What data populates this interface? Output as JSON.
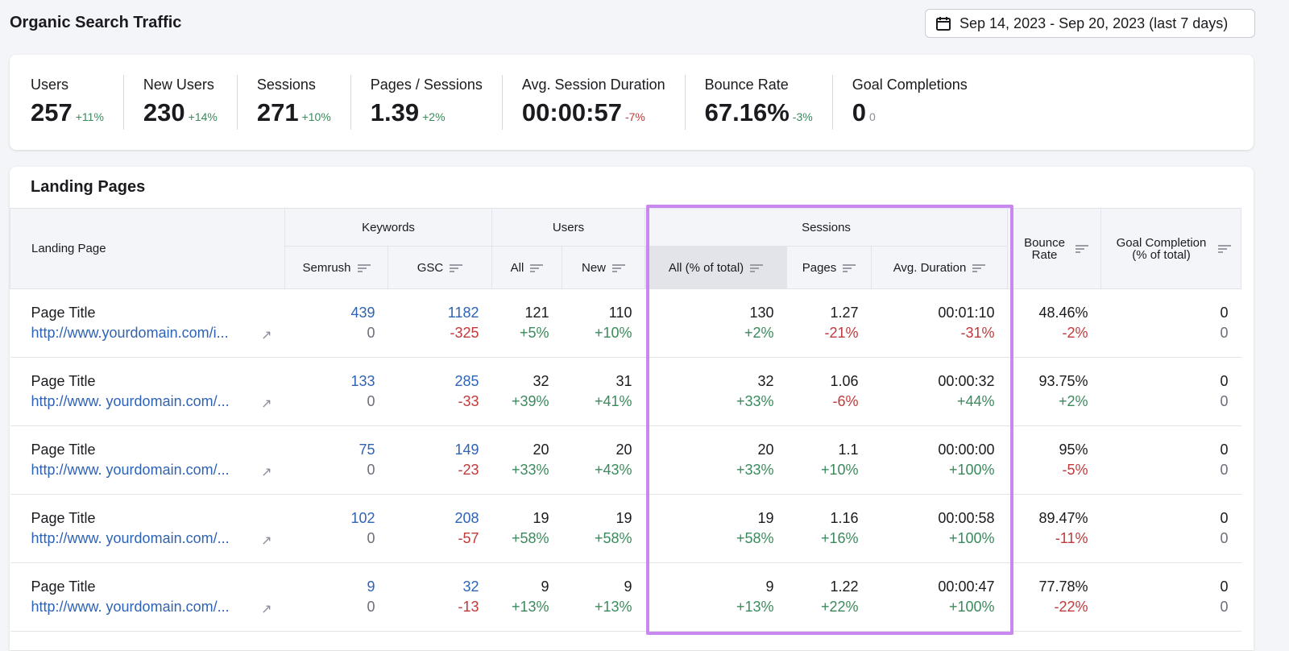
{
  "title": "Organic Search Traffic",
  "date_range": "Sep 14, 2023 - Sep 20, 2023 (last 7 days)",
  "kpis": [
    {
      "label": "Users",
      "value": "257",
      "delta": "+11%",
      "trend": "up"
    },
    {
      "label": "New Users",
      "value": "230",
      "delta": "+14%",
      "trend": "up"
    },
    {
      "label": "Sessions",
      "value": "271",
      "delta": "+10%",
      "trend": "up"
    },
    {
      "label": "Pages / Sessions",
      "value": "1.39",
      "delta": "+2%",
      "trend": "up"
    },
    {
      "label": "Avg. Session Duration",
      "value": "00:00:57",
      "delta": "-7%",
      "trend": "down"
    },
    {
      "label": "Bounce Rate",
      "value": "67.16%",
      "delta": "-3%",
      "trend": "up"
    },
    {
      "label": "Goal Completions",
      "value": "0",
      "delta": "0",
      "trend": "neutral"
    }
  ],
  "landing": {
    "title": "Landing Pages",
    "groups": {
      "landing": "Landing Page",
      "keywords": "Keywords",
      "users": "Users",
      "sessions": "Sessions",
      "bounce": "Bounce Rate",
      "goal": "Goal Completion (% of total)"
    },
    "cols": {
      "semrush": "Semrush",
      "gsc": "GSC",
      "all": "All",
      "new": "New",
      "sess_all": "All (% of total)",
      "pages": "Pages",
      "avg": "Avg. Duration"
    },
    "rows": [
      {
        "title": "Page Title",
        "url": "http://www.yourdomain.com/i...",
        "semrush": [
          "439",
          "0"
        ],
        "gsc": [
          "1182",
          "-325"
        ],
        "all": [
          "121",
          "+5%"
        ],
        "new": [
          "110",
          "+10%"
        ],
        "sess": [
          "130",
          "+2%"
        ],
        "pages": [
          "1.27",
          "-21%"
        ],
        "avg": [
          "00:01:10",
          "-31%"
        ],
        "bounce": [
          "48.46%",
          "-2%"
        ],
        "goal": [
          "0",
          "0"
        ]
      },
      {
        "title": "Page Title",
        "url": "http://www. yourdomain.com/...",
        "semrush": [
          "133",
          "0"
        ],
        "gsc": [
          "285",
          "-33"
        ],
        "all": [
          "32",
          "+39%"
        ],
        "new": [
          "31",
          "+41%"
        ],
        "sess": [
          "32",
          "+33%"
        ],
        "pages": [
          "1.06",
          "-6%"
        ],
        "avg": [
          "00:00:32",
          "+44%"
        ],
        "bounce": [
          "93.75%",
          "+2%"
        ],
        "goal": [
          "0",
          "0"
        ]
      },
      {
        "title": "Page Title",
        "url": "http://www. yourdomain.com/...",
        "semrush": [
          "75",
          "0"
        ],
        "gsc": [
          "149",
          "-23"
        ],
        "all": [
          "20",
          "+33%"
        ],
        "new": [
          "20",
          "+43%"
        ],
        "sess": [
          "20",
          "+33%"
        ],
        "pages": [
          "1.1",
          "+10%"
        ],
        "avg": [
          "00:00:00",
          "+100%"
        ],
        "bounce": [
          "95%",
          "-5%"
        ],
        "goal": [
          "0",
          "0"
        ]
      },
      {
        "title": "Page Title",
        "url": "http://www. yourdomain.com/...",
        "semrush": [
          "102",
          "0"
        ],
        "gsc": [
          "208",
          "-57"
        ],
        "all": [
          "19",
          "+58%"
        ],
        "new": [
          "19",
          "+58%"
        ],
        "sess": [
          "19",
          "+58%"
        ],
        "pages": [
          "1.16",
          "+16%"
        ],
        "avg": [
          "00:00:58",
          "+100%"
        ],
        "bounce": [
          "89.47%",
          "-11%"
        ],
        "goal": [
          "0",
          "0"
        ]
      },
      {
        "title": "Page Title",
        "url": "http://www. yourdomain.com/...",
        "semrush": [
          "9",
          "0"
        ],
        "gsc": [
          "32",
          "-13"
        ],
        "all": [
          "9",
          "+13%"
        ],
        "new": [
          "9",
          "+13%"
        ],
        "sess": [
          "9",
          "+13%"
        ],
        "pages": [
          "1.22",
          "+22%"
        ],
        "avg": [
          "00:00:47",
          "+100%"
        ],
        "bounce": [
          "77.78%",
          "-22%"
        ],
        "goal": [
          "0",
          "0"
        ]
      }
    ]
  },
  "colors": {
    "positive": "#3a8a5c",
    "negative": "#c0393b",
    "link": "#2f63b5",
    "highlight": "#c988f0"
  }
}
